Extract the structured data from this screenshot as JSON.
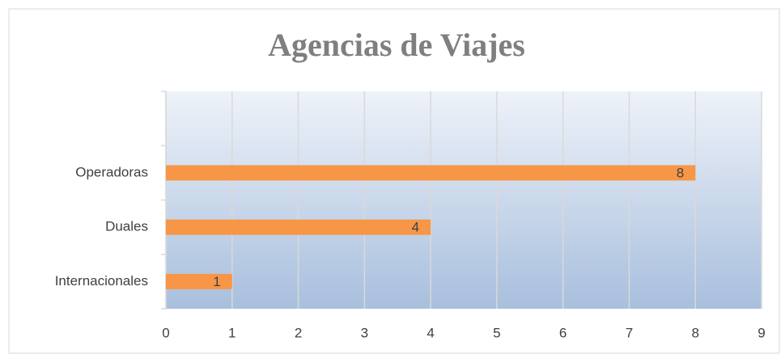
{
  "chart_data": {
    "type": "bar",
    "orientation": "horizontal",
    "title": "Agencias de Viajes",
    "categories": [
      "Internacionales",
      "Duales",
      "Operadoras",
      null
    ],
    "values": [
      1,
      4,
      8,
      null
    ],
    "color": "#f79646",
    "xlim": [
      0,
      9
    ],
    "xticks": [
      0,
      1,
      2,
      3,
      4,
      5,
      6,
      7,
      8,
      9
    ],
    "grid": true
  }
}
